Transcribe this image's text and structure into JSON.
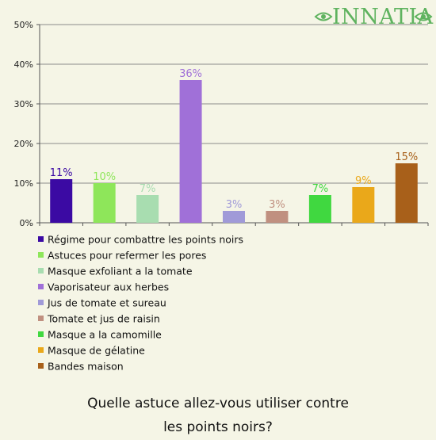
{
  "logo": {
    "text": "INNATIA",
    "color": "#5fb35f"
  },
  "question": {
    "line1": "Quelle astuce allez-vous utiliser contre",
    "line2": "les points noirs?"
  },
  "chart_data": {
    "type": "bar",
    "ylim": [
      0,
      50
    ],
    "yticks": [
      "0%",
      "10%",
      "20%",
      "30%",
      "40%",
      "50%"
    ],
    "grid": true,
    "legend_position": "below",
    "categories": [
      "Régime pour combattre les points noirs",
      "Astuces pour refermer les pores",
      "Masque exfoliant a la tomate",
      "Vaporisateur aux herbes",
      "Jus de tomate et sureau",
      "Tomate et jus de raisin",
      "Masque a la camomille",
      "Masque de gélatine",
      "Bandes maison"
    ],
    "values": [
      11,
      10,
      7,
      36,
      3,
      3,
      7,
      9,
      15
    ],
    "value_labels": [
      "11%",
      "10%",
      "7%",
      "36%",
      "3%",
      "3%",
      "7%",
      "9%",
      "15%"
    ],
    "colors": [
      "#3b0aa3",
      "#8ee65a",
      "#a8ddb0",
      "#a070d8",
      "#a09ad8",
      "#c09080",
      "#40d840",
      "#eaa81a",
      "#a8601a"
    ]
  }
}
